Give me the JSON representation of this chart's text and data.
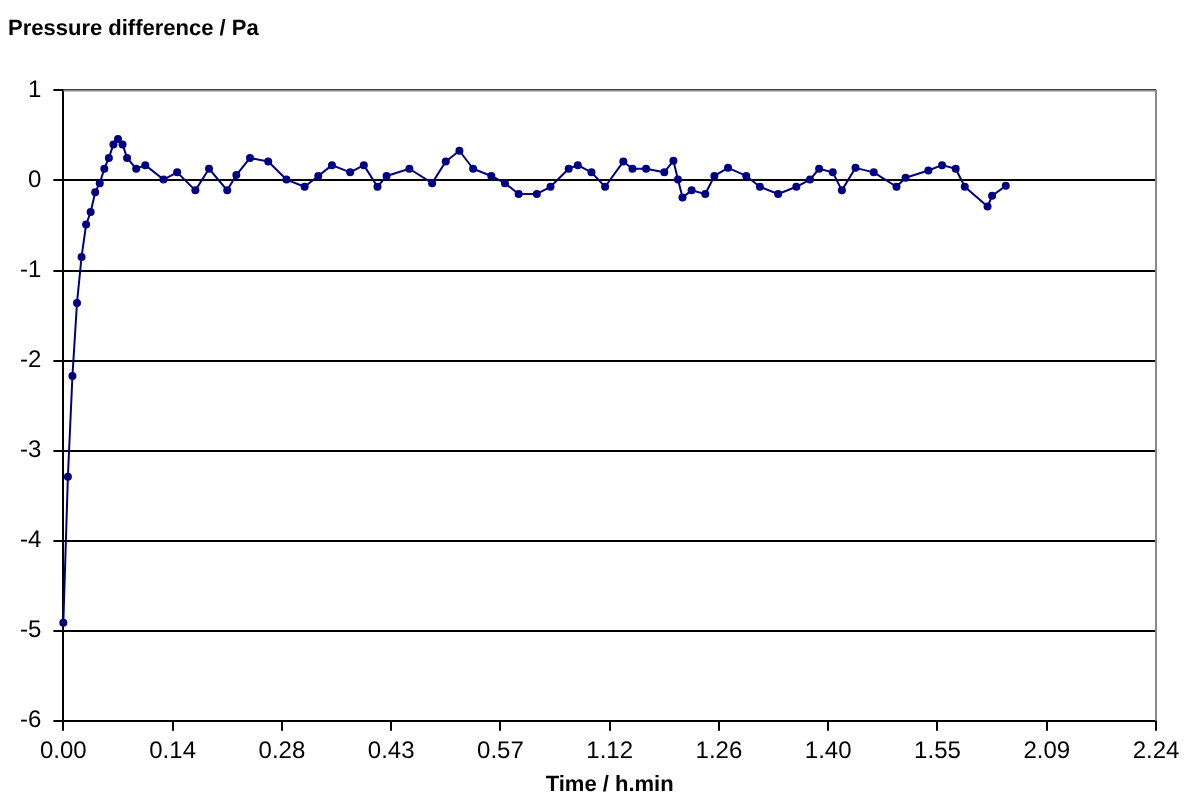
{
  "chart_data": {
    "type": "line",
    "title": "Pressure difference / Pa",
    "xlabel": "Time / h.min",
    "categories": [
      "0.00",
      null,
      null,
      null,
      null,
      null,
      null,
      null,
      null,
      null,
      null,
      null,
      null,
      null,
      null,
      null,
      null,
      null,
      null,
      null,
      null,
      null,
      null,
      null,
      "0.14",
      null,
      null,
      null,
      null,
      null,
      null,
      null,
      null,
      null,
      null,
      null,
      null,
      null,
      null,
      null,
      null,
      null,
      null,
      null,
      null,
      null,
      null,
      null,
      "0.28",
      null,
      null,
      null,
      null,
      null,
      null,
      null,
      null,
      null,
      null,
      null,
      null,
      null,
      null,
      null,
      null,
      null,
      null,
      null,
      null,
      null,
      null,
      null,
      "0.43",
      null,
      null,
      null,
      null,
      null,
      null,
      null,
      null,
      null,
      null,
      null,
      null,
      null,
      null,
      null,
      null,
      null,
      null,
      null,
      null,
      null,
      null,
      null,
      "0.57",
      null,
      null,
      null,
      null,
      null,
      null,
      null,
      null,
      null,
      null,
      null,
      null,
      null,
      null,
      null,
      null,
      null,
      null,
      null,
      null,
      null,
      null,
      null,
      "1.12",
      null,
      null,
      null,
      null,
      null,
      null,
      null,
      null,
      null,
      null,
      null,
      null,
      null,
      null,
      null,
      null,
      null,
      null,
      null,
      null,
      null,
      null,
      null,
      "1.26",
      null,
      null,
      null,
      null,
      null,
      null,
      null,
      null,
      null,
      null,
      null,
      null,
      null,
      null,
      null,
      null,
      null,
      null,
      null,
      null,
      null,
      null,
      null,
      "1.40",
      null,
      null,
      null,
      null,
      null,
      null,
      null,
      null,
      null,
      null,
      null,
      null,
      null,
      null,
      null,
      null,
      null,
      null,
      null,
      null,
      null,
      null,
      null,
      "1.55",
      null,
      null,
      null,
      null,
      null,
      null,
      null,
      null,
      null,
      null,
      null,
      null,
      null,
      null,
      null,
      null,
      null,
      null,
      null,
      null,
      null,
      null,
      null,
      "2.09",
      null,
      null,
      null,
      null,
      null,
      null,
      null,
      null,
      null,
      null,
      null,
      null,
      null,
      null,
      null,
      null,
      null,
      null,
      null,
      null,
      null,
      null,
      null,
      "2.24"
    ],
    "series": [
      {
        "color": "#000080",
        "values": [
          -4.91,
          -3.29,
          -2.17,
          -1.36,
          -0.85,
          -0.49,
          -0.35,
          -0.13,
          -0.03,
          0.13,
          0.25,
          0.4,
          0.46,
          0.4,
          0.25,
          null,
          0.13,
          null,
          0.17,
          null,
          null,
          null,
          0.01,
          null,
          null,
          0.09,
          null,
          null,
          null,
          -0.11,
          null,
          null,
          0.13,
          null,
          null,
          null,
          -0.11,
          null,
          0.06,
          null,
          null,
          0.25,
          null,
          null,
          null,
          0.21,
          null,
          null,
          null,
          0.01,
          null,
          null,
          null,
          -0.07,
          null,
          null,
          0.05,
          null,
          null,
          0.17,
          null,
          null,
          null,
          0.09,
          null,
          null,
          0.17,
          null,
          null,
          -0.07,
          null,
          0.05,
          null,
          null,
          null,
          null,
          0.13,
          null,
          null,
          null,
          null,
          -0.03,
          null,
          null,
          0.21,
          null,
          null,
          0.33,
          null,
          null,
          0.13,
          null,
          null,
          null,
          0.05,
          null,
          null,
          -0.03,
          null,
          null,
          -0.15,
          null,
          null,
          null,
          -0.15,
          null,
          null,
          -0.07,
          null,
          null,
          null,
          0.13,
          null,
          0.17,
          null,
          null,
          0.09,
          null,
          null,
          -0.07,
          null,
          null,
          null,
          0.21,
          null,
          0.13,
          null,
          null,
          0.13,
          null,
          null,
          null,
          0.09,
          null,
          0.22,
          0.01,
          -0.19,
          null,
          -0.11,
          null,
          null,
          -0.15,
          null,
          0.05,
          null,
          null,
          0.14,
          null,
          null,
          null,
          0.05,
          null,
          null,
          -0.07,
          null,
          null,
          null,
          -0.15,
          null,
          null,
          null,
          -0.07,
          null,
          null,
          0.01,
          null,
          0.13,
          null,
          null,
          0.09,
          null,
          -0.11,
          null,
          null,
          0.14,
          null,
          null,
          null,
          0.09,
          null,
          null,
          null,
          null,
          -0.07,
          null,
          0.03,
          null,
          null,
          null,
          null,
          0.11,
          null,
          null,
          0.17,
          null,
          null,
          0.13,
          null,
          -0.07,
          null,
          null,
          null,
          null,
          -0.29,
          -0.17,
          null,
          null,
          -0.06,
          null,
          null,
          null,
          null,
          null,
          null,
          null,
          null,
          null,
          null,
          null,
          null,
          null,
          null,
          null,
          null,
          null,
          null,
          null,
          null,
          null,
          null,
          null,
          null,
          null,
          null,
          null,
          null,
          null,
          null,
          null,
          null,
          null
        ]
      }
    ],
    "ylim": [
      -6,
      1
    ],
    "yticks": [
      -6,
      -5,
      -4,
      -3,
      -2,
      -1,
      0,
      1
    ],
    "grid": "y",
    "legend": false,
    "marker": "circle",
    "line_style": "solid"
  }
}
